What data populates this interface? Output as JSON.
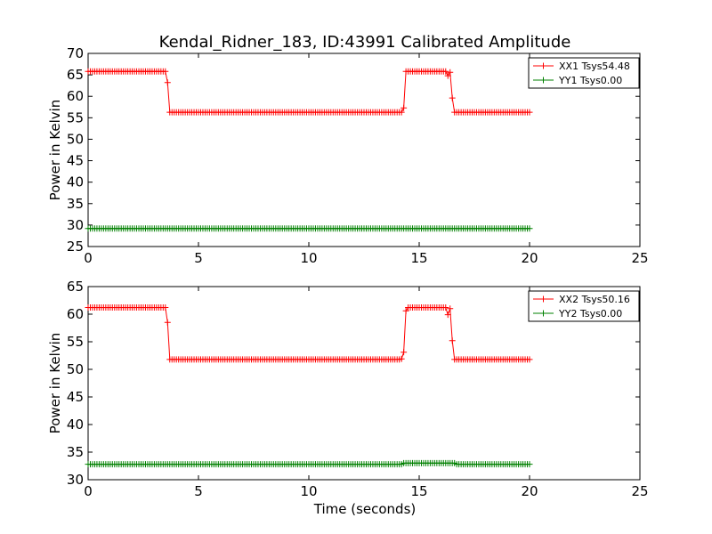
{
  "chart_data": {
    "title": "Kendal_Ridner_183, ID:43991 Calibrated Amplitude",
    "xlabel": "Time (seconds)",
    "panels": [
      {
        "type": "line",
        "ylabel": "Power in Kelvin",
        "xlim": [
          0,
          25
        ],
        "ylim": [
          25,
          70
        ],
        "xticks": [
          0,
          5,
          10,
          15,
          20,
          25
        ],
        "yticks": [
          25,
          30,
          35,
          40,
          45,
          50,
          55,
          60,
          65,
          70
        ],
        "grid": false,
        "legend_position": "top-right",
        "series": [
          {
            "name": "XX1 Tsys54.48",
            "color": "#ff0000",
            "segments": [
              {
                "start": 0.0,
                "end": 3.5,
                "value": 65.8
              },
              {
                "point": 3.6,
                "value": 63.2
              },
              {
                "start": 3.7,
                "end": 14.2,
                "value": 56.3
              },
              {
                "point": 14.3,
                "value": 57.3
              },
              {
                "start": 14.4,
                "end": 16.2,
                "value": 65.8
              },
              {
                "point": 16.3,
                "value": 64.8
              },
              {
                "point": 16.4,
                "value": 65.6
              },
              {
                "point": 16.5,
                "value": 59.6
              },
              {
                "start": 16.6,
                "end": 20.0,
                "value": 56.3
              }
            ]
          },
          {
            "name": "YY1 Tsys0.00",
            "color": "#008000",
            "segments": [
              {
                "start": 0.0,
                "end": 20.0,
                "value": 29.2
              }
            ]
          }
        ]
      },
      {
        "type": "line",
        "ylabel": "Power in Kelvin",
        "xlim": [
          0,
          25
        ],
        "ylim": [
          30,
          65
        ],
        "xticks": [
          0,
          5,
          10,
          15,
          20,
          25
        ],
        "yticks": [
          30,
          35,
          40,
          45,
          50,
          55,
          60,
          65
        ],
        "grid": false,
        "legend_position": "top-right",
        "series": [
          {
            "name": "XX2 Tsys50.16",
            "color": "#ff0000",
            "segments": [
              {
                "start": 0.0,
                "end": 3.5,
                "value": 61.2
              },
              {
                "point": 3.6,
                "value": 58.5
              },
              {
                "start": 3.7,
                "end": 14.1,
                "value": 51.8
              },
              {
                "point": 14.2,
                "value": 51.9
              },
              {
                "point": 14.3,
                "value": 53.1
              },
              {
                "point": 14.4,
                "value": 60.6
              },
              {
                "start": 14.5,
                "end": 16.2,
                "value": 61.2
              },
              {
                "point": 16.3,
                "value": 59.9
              },
              {
                "point": 16.4,
                "value": 61.0
              },
              {
                "point": 16.5,
                "value": 55.2
              },
              {
                "start": 16.6,
                "end": 20.0,
                "value": 51.8
              }
            ]
          },
          {
            "name": "YY2 Tsys0.00",
            "color": "#008000",
            "segments": [
              {
                "start": 0.0,
                "end": 14.2,
                "value": 32.8
              },
              {
                "start": 14.3,
                "end": 16.6,
                "value": 33.0
              },
              {
                "start": 16.7,
                "end": 20.0,
                "value": 32.8
              }
            ]
          }
        ]
      }
    ]
  }
}
